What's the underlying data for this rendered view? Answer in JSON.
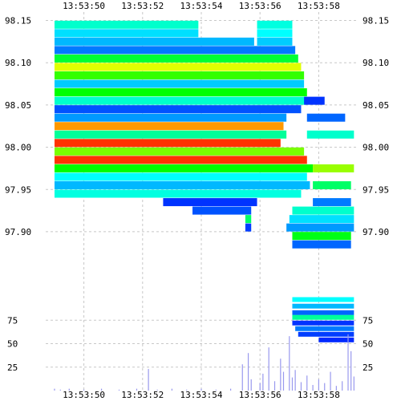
{
  "chart_data": {
    "type": "heatmap",
    "x_ticks": [
      "13:53:50",
      "13:53:52",
      "13:53:54",
      "13:53:56",
      "13:53:58"
    ],
    "x_range_seconds": [
      48.7,
      59.3
    ],
    "price_ticks": [
      "98.15",
      "98.10",
      "98.05",
      "98.00",
      "97.95",
      "97.90"
    ],
    "price_range": [
      97.88,
      98.16
    ],
    "volume_ticks": [
      "75",
      "50",
      "25"
    ],
    "volume_range": [
      0,
      100
    ],
    "grid": true,
    "colormap": [
      "#0000ff",
      "#00ffff",
      "#00ff00",
      "#ffff00",
      "#ff0000"
    ],
    "volume_color": "#9999ee",
    "heat_rows": [
      {
        "price": 98.145,
        "x": [
          49.0,
          53.9
        ],
        "v": 0.3
      },
      {
        "price": 98.145,
        "x": [
          55.9,
          57.1
        ],
        "v": 0.28
      },
      {
        "price": 98.135,
        "x": [
          49.0,
          53.9
        ],
        "v": 0.22
      },
      {
        "price": 98.135,
        "x": [
          55.9,
          57.1
        ],
        "v": 0.25
      },
      {
        "price": 98.125,
        "x": [
          49.0,
          55.8
        ],
        "v": 0.18
      },
      {
        "price": 98.125,
        "x": [
          55.9,
          57.1
        ],
        "v": 0.2
      },
      {
        "price": 98.115,
        "x": [
          49.0,
          57.2
        ],
        "v": 0.12
      },
      {
        "price": 98.105,
        "x": [
          49.0,
          57.3
        ],
        "v": 0.45
      },
      {
        "price": 98.095,
        "x": [
          49.0,
          57.4
        ],
        "v": 0.72
      },
      {
        "price": 98.085,
        "x": [
          49.0,
          57.5
        ],
        "v": 0.55
      },
      {
        "price": 98.075,
        "x": [
          49.0,
          57.5
        ],
        "v": 0.2
      },
      {
        "price": 98.065,
        "x": [
          49.0,
          57.6
        ],
        "v": 0.5
      },
      {
        "price": 98.055,
        "x": [
          49.0,
          57.6
        ],
        "v": 0.3
      },
      {
        "price": 98.045,
        "x": [
          49.0,
          57.4
        ],
        "v": 0.08
      },
      {
        "price": 98.035,
        "x": [
          49.0,
          56.9
        ],
        "v": 0.15
      },
      {
        "price": 98.025,
        "x": [
          49.0,
          56.8
        ],
        "v": 0.85
      },
      {
        "price": 98.015,
        "x": [
          49.0,
          56.9
        ],
        "v": 0.35
      },
      {
        "price": 98.005,
        "x": [
          49.0,
          56.7
        ],
        "v": 0.95
      },
      {
        "price": 97.995,
        "x": [
          49.0,
          57.5
        ],
        "v": 0.62
      },
      {
        "price": 97.985,
        "x": [
          49.0,
          57.6
        ],
        "v": 0.95
      },
      {
        "price": 97.975,
        "x": [
          49.0,
          57.8
        ],
        "v": 0.5
      },
      {
        "price": 97.965,
        "x": [
          49.0,
          57.6
        ],
        "v": 0.25
      },
      {
        "price": 97.955,
        "x": [
          49.0,
          57.7
        ],
        "v": 0.18
      },
      {
        "price": 97.945,
        "x": [
          49.0,
          57.4
        ],
        "v": 0.28
      },
      {
        "price": 97.935,
        "x": [
          52.7,
          55.9
        ],
        "v": 0.05
      },
      {
        "price": 97.925,
        "x": [
          53.7,
          55.7
        ],
        "v": 0.08
      },
      {
        "price": 97.915,
        "x": [
          55.5,
          55.7
        ],
        "v": 0.4
      },
      {
        "price": 97.905,
        "x": [
          55.5,
          55.7
        ],
        "v": 0.06
      },
      {
        "price": 97.925,
        "x": [
          57.1,
          59.2
        ],
        "v": 0.3
      },
      {
        "price": 97.915,
        "x": [
          57.0,
          59.2
        ],
        "v": 0.22
      },
      {
        "price": 97.905,
        "x": [
          56.9,
          59.2
        ],
        "v": 0.15
      },
      {
        "price": 97.895,
        "x": [
          57.1,
          59.1
        ],
        "v": 0.48
      },
      {
        "price": 97.885,
        "x": [
          57.1,
          59.1
        ],
        "v": 0.1
      },
      {
        "price": 98.055,
        "x": [
          57.5,
          58.2
        ],
        "v": 0.05
      },
      {
        "price": 98.035,
        "x": [
          57.6,
          58.9
        ],
        "v": 0.1
      },
      {
        "price": 98.015,
        "x": [
          57.6,
          59.2
        ],
        "v": 0.3
      },
      {
        "price": 97.975,
        "x": [
          57.8,
          59.2
        ],
        "v": 0.65
      },
      {
        "price": 97.955,
        "x": [
          57.8,
          59.1
        ],
        "v": 0.4
      },
      {
        "price": 97.935,
        "x": [
          57.8,
          59.1
        ],
        "v": 0.12
      }
    ],
    "lower_bands": [
      {
        "level": 97.0,
        "x": [
          57.1,
          59.2
        ],
        "v": 0.25
      },
      {
        "level": 90.0,
        "x": [
          57.1,
          59.2
        ],
        "v": 0.18
      },
      {
        "level": 83.0,
        "x": [
          57.1,
          59.2
        ],
        "v": 0.1
      },
      {
        "level": 78.0,
        "x": [
          57.1,
          59.2
        ],
        "v": 0.35
      },
      {
        "level": 72.0,
        "x": [
          57.1,
          59.2
        ],
        "v": 0.05
      },
      {
        "level": 66.0,
        "x": [
          57.2,
          59.2
        ],
        "v": 0.12
      },
      {
        "level": 60.0,
        "x": [
          57.3,
          59.2
        ],
        "v": 0.06
      },
      {
        "level": 54.0,
        "x": [
          58.0,
          59.2
        ],
        "v": 0.04
      }
    ],
    "volume_bars": [
      [
        49.0,
        2
      ],
      [
        49.2,
        1
      ],
      [
        49.5,
        2
      ],
      [
        50.0,
        1
      ],
      [
        50.6,
        2
      ],
      [
        51.2,
        1
      ],
      [
        51.8,
        2
      ],
      [
        52.2,
        23
      ],
      [
        52.5,
        1
      ],
      [
        53.0,
        2
      ],
      [
        53.5,
        1
      ],
      [
        54.0,
        2
      ],
      [
        54.5,
        1
      ],
      [
        55.0,
        2
      ],
      [
        55.4,
        28
      ],
      [
        55.6,
        40
      ],
      [
        55.7,
        12
      ],
      [
        56.0,
        8
      ],
      [
        56.1,
        18
      ],
      [
        56.3,
        46
      ],
      [
        56.5,
        10
      ],
      [
        56.7,
        34
      ],
      [
        56.8,
        20
      ],
      [
        57.0,
        58
      ],
      [
        57.1,
        14
      ],
      [
        57.2,
        22
      ],
      [
        57.4,
        9
      ],
      [
        57.6,
        16
      ],
      [
        57.8,
        6
      ],
      [
        58.0,
        12
      ],
      [
        58.2,
        8
      ],
      [
        58.4,
        20
      ],
      [
        58.6,
        5
      ],
      [
        58.8,
        10
      ],
      [
        59.0,
        60
      ],
      [
        59.1,
        42
      ],
      [
        59.2,
        15
      ]
    ]
  }
}
